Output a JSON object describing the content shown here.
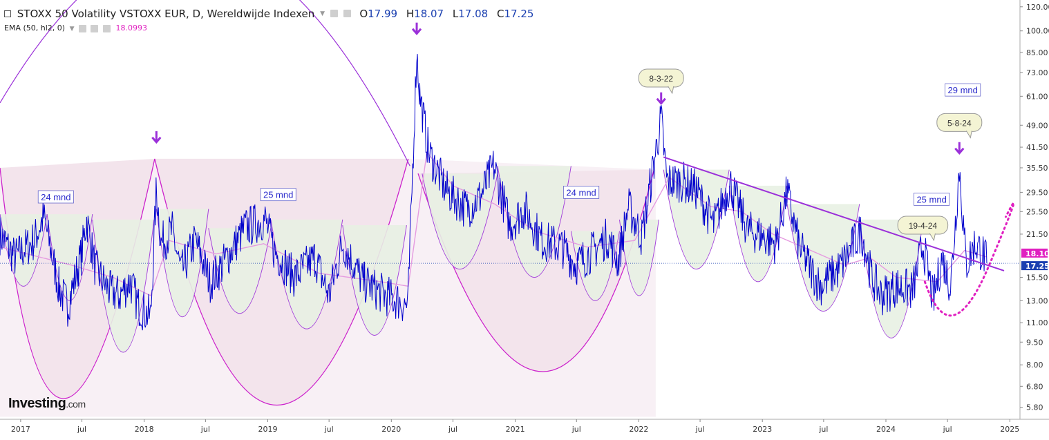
{
  "header": {
    "title": "STOXX 50 Volatility VSTOXX EUR, D, Wereldwijde Indexen",
    "open_label": "O",
    "open": "17.99",
    "high_label": "H",
    "high": "18.07",
    "low_label": "L",
    "low": "17.08",
    "close_label": "C",
    "close": "17.25"
  },
  "indicator": {
    "name": "EMA (50, hl2, 0)",
    "value": "18.0993"
  },
  "logo": {
    "main": "Investing",
    "suffix": ".com"
  },
  "colors": {
    "price_line": "#0000cc",
    "ema_line": "#e59be0",
    "arc": "#cc22cc",
    "arc_purple": "#9b30d9",
    "trendline": "#9b30d9",
    "arrow": "#9b30d9",
    "big_fill": "#f3e4ec",
    "small_fill": "#e8f1e4",
    "callout_fill": "#f4f4d4",
    "price_tag": "#e020c0",
    "close_tag": "#1a3fb0"
  },
  "chart_data": {
    "type": "line",
    "title": "STOXX 50 Volatility VSTOXX EUR, D, Wereldwijde Indexen",
    "y_scale": "log",
    "ylim": [
      5.3,
      125
    ],
    "xlim": [
      "2016-11-01",
      "2025-01-31"
    ],
    "y_ticks": [
      "120.00",
      "100.00",
      "85.00",
      "73.00",
      "61.00",
      "49.00",
      "41.50",
      "35.50",
      "29.50",
      "25.50",
      "21.50",
      "18.10",
      "17.25",
      "15.50",
      "13.00",
      "11.00",
      "9.50",
      "8.00",
      "6.80",
      "5.80"
    ],
    "x_ticks": [
      {
        "date": "2017-01-01",
        "label": "2017"
      },
      {
        "date": "2017-07-01",
        "label": "jul"
      },
      {
        "date": "2018-01-01",
        "label": "2018"
      },
      {
        "date": "2018-07-01",
        "label": "jul"
      },
      {
        "date": "2019-01-01",
        "label": "2019"
      },
      {
        "date": "2019-07-01",
        "label": "jul"
      },
      {
        "date": "2020-01-01",
        "label": "2020"
      },
      {
        "date": "2020-07-01",
        "label": "jul"
      },
      {
        "date": "2021-01-01",
        "label": "2021"
      },
      {
        "date": "2021-07-01",
        "label": "jul"
      },
      {
        "date": "2022-01-01",
        "label": "2022"
      },
      {
        "date": "2022-07-01",
        "label": "jul"
      },
      {
        "date": "2023-01-01",
        "label": "2023"
      },
      {
        "date": "2023-07-01",
        "label": "jul"
      },
      {
        "date": "2024-01-01",
        "label": "2024"
      },
      {
        "date": "2024-07-01",
        "label": "jul"
      },
      {
        "date": "2025-01-01",
        "label": "2025"
      }
    ],
    "grid": false,
    "series": [
      {
        "name": "STOXX 50 Volatility VSTOXX EUR",
        "points": [
          [
            "2016-11-01",
            21.5
          ],
          [
            "2016-12-15",
            18.0
          ],
          [
            "2017-02-10",
            20.5
          ],
          [
            "2017-03-10",
            24.5
          ],
          [
            "2017-04-10",
            17.0
          ],
          [
            "2017-04-25",
            14.2
          ],
          [
            "2017-05-20",
            12.5
          ],
          [
            "2017-06-30",
            18.5
          ],
          [
            "2017-07-15",
            24.0
          ],
          [
            "2017-08-10",
            16.5
          ],
          [
            "2017-09-20",
            14.0
          ],
          [
            "2017-10-20",
            13.5
          ],
          [
            "2017-11-20",
            15.0
          ],
          [
            "2017-12-15",
            12.5
          ],
          [
            "2018-01-20",
            11.5
          ],
          [
            "2018-02-06",
            30.5
          ],
          [
            "2018-02-20",
            20.0
          ],
          [
            "2018-03-25",
            22.0
          ],
          [
            "2018-04-20",
            16.0
          ],
          [
            "2018-06-01",
            20.5
          ],
          [
            "2018-07-15",
            15.0
          ],
          [
            "2018-08-20",
            17.0
          ],
          [
            "2018-10-25",
            22.5
          ],
          [
            "2018-12-24",
            24.0
          ],
          [
            "2019-01-20",
            19.0
          ],
          [
            "2019-03-20",
            15.5
          ],
          [
            "2019-05-20",
            18.0
          ],
          [
            "2019-07-01",
            13.5
          ],
          [
            "2019-08-10",
            20.0
          ],
          [
            "2019-10-10",
            15.0
          ],
          [
            "2019-12-15",
            13.5
          ],
          [
            "2020-01-20",
            13.0
          ],
          [
            "2020-02-19",
            12.5
          ],
          [
            "2020-03-16",
            85.5
          ],
          [
            "2020-03-25",
            62.0
          ],
          [
            "2020-04-20",
            40.0
          ],
          [
            "2020-06-10",
            30.0
          ],
          [
            "2020-08-10",
            26.0
          ],
          [
            "2020-09-20",
            28.5
          ],
          [
            "2020-10-30",
            36.0
          ],
          [
            "2020-12-15",
            23.0
          ],
          [
            "2021-01-29",
            26.0
          ],
          [
            "2021-03-20",
            20.5
          ],
          [
            "2021-05-20",
            19.5
          ],
          [
            "2021-06-30",
            17.0
          ],
          [
            "2021-08-20",
            19.0
          ],
          [
            "2021-10-01",
            21.0
          ],
          [
            "2021-11-01",
            17.5
          ],
          [
            "2021-12-01",
            26.5
          ],
          [
            "2022-01-10",
            21.0
          ],
          [
            "2022-03-08",
            51.5
          ],
          [
            "2022-03-25",
            32.0
          ],
          [
            "2022-05-10",
            32.0
          ],
          [
            "2022-06-20",
            30.0
          ],
          [
            "2022-08-10",
            23.0
          ],
          [
            "2022-09-28",
            31.5
          ],
          [
            "2022-11-20",
            22.0
          ],
          [
            "2022-12-20",
            21.5
          ],
          [
            "2023-02-10",
            20.0
          ],
          [
            "2023-03-15",
            29.5
          ],
          [
            "2023-04-20",
            19.5
          ],
          [
            "2023-06-20",
            14.5
          ],
          [
            "2023-08-15",
            16.5
          ],
          [
            "2023-10-20",
            22.0
          ],
          [
            "2023-11-20",
            15.5
          ],
          [
            "2023-12-20",
            13.5
          ],
          [
            "2024-02-01",
            14.5
          ],
          [
            "2024-03-20",
            14.0
          ],
          [
            "2024-04-19",
            20.0
          ],
          [
            "2024-05-20",
            13.0
          ],
          [
            "2024-06-15",
            18.0
          ],
          [
            "2024-07-10",
            14.5
          ],
          [
            "2024-08-05",
            35.5
          ],
          [
            "2024-08-25",
            17.0
          ],
          [
            "2024-09-20",
            20.0
          ],
          [
            "2024-10-15",
            18.5
          ],
          [
            "2024-10-25",
            17.25
          ]
        ]
      },
      {
        "name": "EMA (50, hl2, 0)",
        "points": [
          [
            "2016-11-01",
            19.5
          ],
          [
            "2017-06-01",
            17.0
          ],
          [
            "2017-10-01",
            15.5
          ],
          [
            "2018-01-20",
            13.5
          ],
          [
            "2018-03-15",
            20.5
          ],
          [
            "2018-08-01",
            18.5
          ],
          [
            "2018-12-20",
            20.0
          ],
          [
            "2019-06-01",
            16.0
          ],
          [
            "2019-12-01",
            15.0
          ],
          [
            "2020-02-20",
            14.5
          ],
          [
            "2020-04-15",
            40.0
          ],
          [
            "2020-07-01",
            31.0
          ],
          [
            "2020-11-01",
            27.0
          ],
          [
            "2021-03-01",
            22.0
          ],
          [
            "2021-08-01",
            19.5
          ],
          [
            "2021-12-20",
            20.5
          ],
          [
            "2022-04-01",
            33.0
          ],
          [
            "2022-08-01",
            26.5
          ],
          [
            "2022-11-01",
            25.5
          ],
          [
            "2023-02-01",
            21.5
          ],
          [
            "2023-05-01",
            19.5
          ],
          [
            "2023-09-01",
            17.0
          ],
          [
            "2023-11-15",
            18.0
          ],
          [
            "2024-02-01",
            15.5
          ],
          [
            "2024-06-01",
            15.0
          ],
          [
            "2024-08-20",
            19.0
          ],
          [
            "2024-10-25",
            18.0993
          ]
        ]
      }
    ],
    "annotations": [
      {
        "text": "24 mnd",
        "date": "2017-04-15",
        "value": 28.5,
        "style": "box"
      },
      {
        "text": "25 mnd",
        "date": "2019-02-01",
        "value": 29.0,
        "style": "box"
      },
      {
        "text": "24 mnd",
        "date": "2021-07-15",
        "value": 29.5,
        "style": "box"
      },
      {
        "text": "8-3-22",
        "date": "2022-03-08",
        "value": 70.0,
        "style": "callout"
      },
      {
        "text": "29 mnd",
        "date": "2024-08-15",
        "value": 64.0,
        "style": "box"
      },
      {
        "text": "5-8-24",
        "date": "2024-08-05",
        "value": 50.0,
        "style": "callout"
      },
      {
        "text": "25 mnd",
        "date": "2024-05-15",
        "value": 28.0,
        "style": "box"
      },
      {
        "text": "19-4-24",
        "date": "2024-04-19",
        "value": 23.0,
        "style": "callout"
      }
    ],
    "price_tags": [
      {
        "value": 18.1,
        "label": "18.10"
      },
      {
        "value": 17.25,
        "label": "17.25"
      }
    ]
  }
}
